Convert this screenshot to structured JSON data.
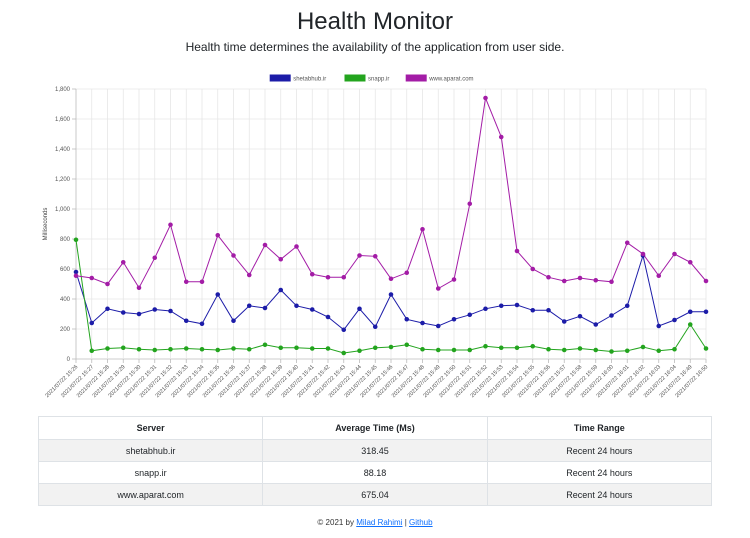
{
  "header": {
    "title": "Health Monitor",
    "subtitle": "Health time determines the availability of the application from user side."
  },
  "chart_data": {
    "type": "line",
    "ylabel": "Milliseconds",
    "ylim": [
      0,
      1800
    ],
    "yticks": [
      "0",
      "200",
      "400",
      "600",
      "800",
      "1,000",
      "1,200",
      "1,400",
      "1,600",
      "1,800"
    ],
    "legend_position": "top",
    "grid": true,
    "x": [
      "2021/07/22 15:26",
      "2021/07/22 15:27",
      "2021/07/22 15:28",
      "2021/07/22 15:29",
      "2021/07/22 15:30",
      "2021/07/22 15:31",
      "2021/07/22 15:32",
      "2021/07/22 15:33",
      "2021/07/22 15:34",
      "2021/07/22 15:35",
      "2021/07/22 15:36",
      "2021/07/22 15:37",
      "2021/07/22 15:38",
      "2021/07/22 15:39",
      "2021/07/22 15:40",
      "2021/07/22 15:41",
      "2021/07/22 15:42",
      "2021/07/22 15:43",
      "2021/07/22 15:44",
      "2021/07/22 15:45",
      "2021/07/22 15:46",
      "2021/07/22 15:47",
      "2021/07/22 15:48",
      "2021/07/22 15:49",
      "2021/07/22 15:50",
      "2021/07/22 15:51",
      "2021/07/22 15:52",
      "2021/07/22 15:53",
      "2021/07/22 15:54",
      "2021/07/22 15:55",
      "2021/07/22 15:56",
      "2021/07/22 15:57",
      "2021/07/22 15:58",
      "2021/07/22 15:59",
      "2021/07/22 16:00",
      "2021/07/22 16:01",
      "2021/07/22 16:02",
      "2021/07/22 16:03",
      "2021/07/22 16:04",
      "2021/07/22 16:49",
      "2021/07/22 16:50"
    ],
    "series": [
      {
        "name": "shetabhub.ir",
        "color": "#1c1ca8",
        "values": [
          580,
          240,
          335,
          310,
          300,
          330,
          320,
          255,
          235,
          430,
          255,
          355,
          340,
          460,
          355,
          330,
          280,
          195,
          335,
          215,
          430,
          265,
          240,
          220,
          265,
          295,
          335,
          355,
          360,
          325,
          325,
          250,
          285,
          230,
          290,
          355,
          690,
          220,
          260,
          315,
          315
        ]
      },
      {
        "name": "snapp.ir",
        "color": "#23a41e",
        "values": [
          795,
          55,
          70,
          75,
          65,
          60,
          65,
          70,
          65,
          60,
          70,
          65,
          95,
          75,
          75,
          70,
          70,
          40,
          55,
          75,
          80,
          95,
          65,
          60,
          60,
          60,
          85,
          75,
          75,
          85,
          65,
          60,
          70,
          60,
          50,
          55,
          80,
          55,
          65,
          230,
          70
        ]
      },
      {
        "name": "www.aparat.com",
        "color": "#a31ca6",
        "values": [
          555,
          540,
          500,
          645,
          475,
          675,
          895,
          515,
          515,
          825,
          690,
          560,
          760,
          665,
          750,
          565,
          545,
          545,
          690,
          685,
          535,
          575,
          865,
          470,
          530,
          1035,
          1740,
          1480,
          720,
          600,
          545,
          520,
          540,
          525,
          515,
          775,
          700,
          555,
          700,
          645,
          520
        ]
      }
    ]
  },
  "table": {
    "headers": [
      "Server",
      "Average Time (Ms)",
      "Time Range"
    ],
    "rows": [
      [
        "shetabhub.ir",
        "318.45",
        "Recent 24 hours"
      ],
      [
        "snapp.ir",
        "88.18",
        "Recent 24 hours"
      ],
      [
        "www.aparat.com",
        "675.04",
        "Recent 24 hours"
      ]
    ]
  },
  "footer": {
    "prefix": "© 2021 by ",
    "author_link": "Milad Rahimi",
    "separator": " | ",
    "github_link": "Github"
  }
}
